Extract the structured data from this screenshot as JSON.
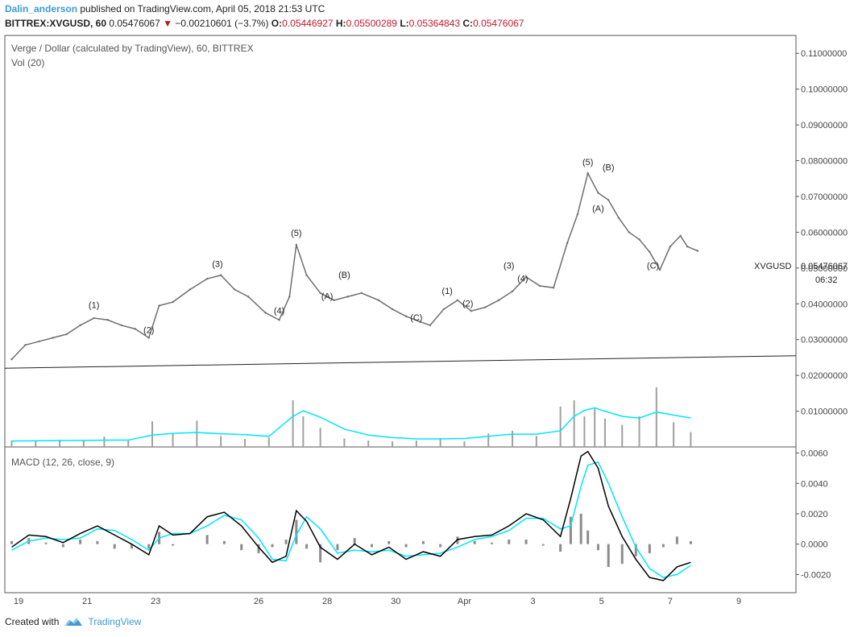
{
  "header": {
    "author": "Dalin_anderson",
    "published_text": "published on TradingView.com, April 05, 2018 21:53 UTC",
    "symbol": "BITTREX:XVGUSD, 60",
    "price": "0.05476067",
    "change": "−0.00210601 (−3.7%)",
    "o_label": "O:",
    "o_value": "0.05446927",
    "h_label": "H:",
    "h_value": "0.05500289",
    "l_label": "L:",
    "l_value": "0.05364843",
    "c_label": "C:",
    "c_value": "0.05476067"
  },
  "main_pane": {
    "title": "Verge / Dollar (calculated by TradingView), 60, BITTREX",
    "volume_label": "Vol (20)",
    "symbol_tag": "XVGUSD",
    "last_price": "0.05476067",
    "countdown": "06:32"
  },
  "macd_pane": {
    "title": "MACD (12, 26, close, 9)"
  },
  "footer": {
    "created_with": "Created with",
    "brand": "TradingView"
  },
  "colors": {
    "accent": "#3c9bd6",
    "down": "#c0182a",
    "price_line": "#6e6e6e",
    "volume_ma": "#00e5ff",
    "macd_line": "#000000",
    "signal_line": "#00e5ff",
    "histogram": "#8c8c8c"
  },
  "chart_data": [
    {
      "type": "line",
      "name": "price",
      "x_dates": [
        "19",
        "21",
        "23",
        "26",
        "28",
        "30",
        "Apr",
        "3",
        "5",
        "7",
        "9"
      ],
      "x": [
        19,
        21,
        23,
        26,
        28,
        30,
        32,
        34,
        36,
        38,
        40
      ],
      "x_tick_labels": [
        "19",
        "21",
        "23",
        "26",
        "28",
        "30",
        "Apr",
        "3",
        "5",
        "7",
        "9"
      ],
      "points": [
        [
          18.8,
          0.0245
        ],
        [
          19.2,
          0.0285
        ],
        [
          19.6,
          0.0295
        ],
        [
          20.0,
          0.0305
        ],
        [
          20.4,
          0.0315
        ],
        [
          20.8,
          0.034
        ],
        [
          21.2,
          0.036
        ],
        [
          21.6,
          0.0355
        ],
        [
          22.0,
          0.034
        ],
        [
          22.4,
          0.033
        ],
        [
          22.8,
          0.0305
        ],
        [
          23.1,
          0.0395
        ],
        [
          23.5,
          0.0405
        ],
        [
          24.0,
          0.044
        ],
        [
          24.5,
          0.047
        ],
        [
          24.9,
          0.048
        ],
        [
          25.3,
          0.044
        ],
        [
          25.7,
          0.042
        ],
        [
          26.2,
          0.0375
        ],
        [
          26.6,
          0.0355
        ],
        [
          26.9,
          0.042
        ],
        [
          27.1,
          0.0565
        ],
        [
          27.4,
          0.048
        ],
        [
          27.8,
          0.043
        ],
        [
          28.2,
          0.041
        ],
        [
          28.6,
          0.042
        ],
        [
          29.0,
          0.043
        ],
        [
          29.5,
          0.041
        ],
        [
          29.9,
          0.0385
        ],
        [
          30.3,
          0.0365
        ],
        [
          30.7,
          0.035
        ],
        [
          31.0,
          0.034
        ],
        [
          31.4,
          0.0385
        ],
        [
          31.8,
          0.041
        ],
        [
          32.2,
          0.038
        ],
        [
          32.6,
          0.039
        ],
        [
          33.0,
          0.041
        ],
        [
          33.4,
          0.0435
        ],
        [
          33.8,
          0.0475
        ],
        [
          34.2,
          0.045
        ],
        [
          34.6,
          0.0445
        ],
        [
          35.0,
          0.057
        ],
        [
          35.3,
          0.065
        ],
        [
          35.6,
          0.0765
        ],
        [
          35.9,
          0.071
        ],
        [
          36.2,
          0.069
        ],
        [
          36.5,
          0.064
        ],
        [
          36.8,
          0.06
        ],
        [
          37.1,
          0.058
        ],
        [
          37.4,
          0.0545
        ],
        [
          37.7,
          0.0495
        ],
        [
          38.0,
          0.056
        ],
        [
          38.3,
          0.059
        ],
        [
          38.5,
          0.056
        ],
        [
          38.8,
          0.0548
        ]
      ],
      "ylim": [
        0,
        0.115
      ],
      "y_ticks": [
        "0.11000000",
        "0.10000000",
        "0.09000000",
        "0.08000000",
        "0.07000000",
        "0.06000000",
        "0.05000000",
        "0.04000000",
        "0.03000000",
        "0.02000000",
        "0.01000000"
      ],
      "y_tick_values": [
        0.11,
        0.1,
        0.09,
        0.08,
        0.07,
        0.06,
        0.05,
        0.04,
        0.03,
        0.02,
        0.01
      ],
      "last_value": 0.05476067,
      "annotations": [
        {
          "text": "(1)",
          "x": 21.2,
          "y": 0.037
        },
        {
          "text": "(2)",
          "x": 22.8,
          "y": 0.03
        },
        {
          "text": "(3)",
          "x": 24.8,
          "y": 0.0485
        },
        {
          "text": "(4)",
          "x": 26.6,
          "y": 0.0355
        },
        {
          "text": "(5)",
          "x": 27.1,
          "y": 0.0572
        },
        {
          "text": "(A)",
          "x": 28.0,
          "y": 0.0395
        },
        {
          "text": "(B)",
          "x": 28.5,
          "y": 0.0455
        },
        {
          "text": "(C)",
          "x": 30.6,
          "y": 0.0335
        },
        {
          "text": "(1)",
          "x": 31.5,
          "y": 0.041
        },
        {
          "text": "(2)",
          "x": 32.1,
          "y": 0.0375
        },
        {
          "text": "(3)",
          "x": 33.3,
          "y": 0.048
        },
        {
          "text": "(4)",
          "x": 33.7,
          "y": 0.0445
        },
        {
          "text": "(5)",
          "x": 35.6,
          "y": 0.077
        },
        {
          "text": "(A)",
          "x": 35.9,
          "y": 0.064
        },
        {
          "text": "(B)",
          "x": 36.2,
          "y": 0.0755
        },
        {
          "text": "(C)",
          "x": 37.5,
          "y": 0.048
        }
      ]
    },
    {
      "type": "bar",
      "name": "Vol (20)",
      "x": [
        18.8,
        19.5,
        20.2,
        20.9,
        21.5,
        22.2,
        22.9,
        23.5,
        24.2,
        24.9,
        25.6,
        26.3,
        27.0,
        27.3,
        27.8,
        28.5,
        29.2,
        29.9,
        30.6,
        31.3,
        32.0,
        32.7,
        33.4,
        34.1,
        34.8,
        35.2,
        35.5,
        35.8,
        36.1,
        36.6,
        37.1,
        37.6,
        38.1,
        38.6
      ],
      "values": [
        1500,
        1300,
        1700,
        1600,
        2400,
        1500,
        6000,
        3200,
        6200,
        2600,
        1900,
        2200,
        11000,
        7200,
        4500,
        2000,
        1500,
        1300,
        1500,
        2100,
        1300,
        3200,
        3800,
        2600,
        9500,
        11000,
        7200,
        9000,
        6700,
        5200,
        7200,
        14000,
        5800,
        3500
      ],
      "ma": [
        1400,
        1450,
        1500,
        1550,
        1600,
        1600,
        2800,
        3200,
        3400,
        3100,
        2900,
        2500,
        7200,
        8500,
        7000,
        4200,
        2800,
        2200,
        1900,
        1900,
        2000,
        2500,
        3000,
        3000,
        3800,
        7200,
        8600,
        9200,
        8400,
        7200,
        6800,
        8200,
        7500,
        6800
      ]
    },
    {
      "type": "line",
      "name": "MACD (12, 26, close, 9)",
      "x": [
        18.8,
        19.3,
        19.8,
        20.3,
        20.8,
        21.3,
        21.8,
        22.3,
        22.8,
        23.1,
        23.5,
        24.0,
        24.5,
        25.0,
        25.5,
        26.0,
        26.4,
        26.8,
        27.1,
        27.4,
        27.8,
        28.3,
        28.8,
        29.3,
        29.8,
        30.3,
        30.8,
        31.3,
        31.8,
        32.3,
        32.8,
        33.3,
        33.8,
        34.3,
        34.8,
        35.1,
        35.4,
        35.6,
        35.9,
        36.2,
        36.6,
        37.0,
        37.4,
        37.8,
        38.2,
        38.6
      ],
      "macd": [
        -0.0002,
        0.0006,
        0.0005,
        0.0001,
        0.0007,
        0.0012,
        0.0006,
        0.0,
        -0.0007,
        0.0012,
        0.0006,
        0.0007,
        0.0018,
        0.0021,
        0.0012,
        -0.0002,
        -0.0012,
        -0.0008,
        0.0022,
        0.0015,
        -0.0002,
        -0.001,
        0.0,
        -0.0007,
        -0.0002,
        -0.001,
        -0.0005,
        -0.0008,
        0.0003,
        0.0005,
        0.0006,
        0.0012,
        0.002,
        0.0016,
        0.0005,
        0.003,
        0.0058,
        0.0061,
        0.005,
        0.0025,
        0.0005,
        -0.001,
        -0.0022,
        -0.0024,
        -0.0015,
        -0.0012
      ],
      "signal": [
        -0.0004,
        0.0002,
        0.0004,
        0.0003,
        0.0004,
        0.001,
        0.0009,
        0.0003,
        -0.0004,
        0.0004,
        0.0007,
        0.0007,
        0.0012,
        0.0019,
        0.0016,
        0.0004,
        -0.001,
        -0.0011,
        0.0006,
        0.0018,
        0.001,
        -0.0006,
        -0.0004,
        -0.0005,
        -0.0004,
        -0.0008,
        -0.0007,
        -0.0006,
        -0.0002,
        0.0003,
        0.0005,
        0.0009,
        0.0017,
        0.0017,
        0.001,
        0.0012,
        0.0038,
        0.0052,
        0.0054,
        0.004,
        0.0018,
        -0.0002,
        -0.0016,
        -0.0022,
        -0.002,
        -0.0014
      ],
      "ylim": [
        -0.0032,
        0.0064
      ],
      "y_ticks": [
        "0.0060",
        "0.0040",
        "0.0020",
        "0.0000",
        "-0.0020"
      ],
      "y_tick_values": [
        0.006,
        0.004,
        0.002,
        0.0,
        -0.002
      ]
    }
  ]
}
